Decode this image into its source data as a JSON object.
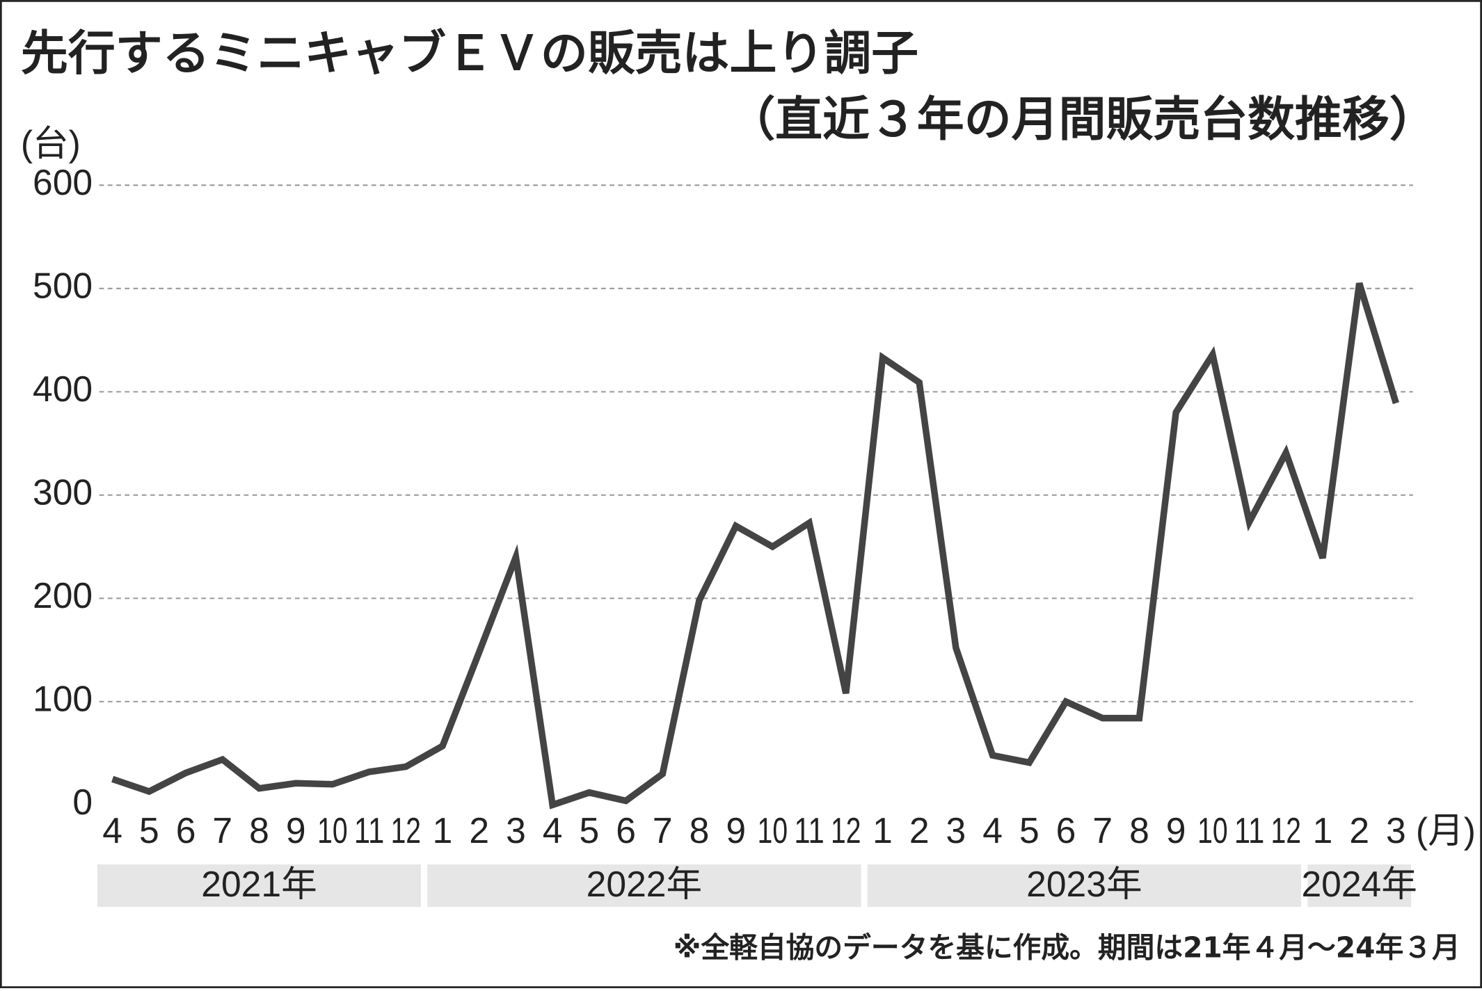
{
  "chart_data": {
    "type": "line",
    "title": "先行するミニキャブＥＶの販売は上り調子",
    "subtitle": "（直近３年の月間販売台数推移）",
    "y_unit": "(台)",
    "x_unit": "(月)",
    "categories": [
      "4",
      "5",
      "6",
      "7",
      "8",
      "9",
      "10",
      "11",
      "12",
      "1",
      "2",
      "3",
      "4",
      "5",
      "6",
      "7",
      "8",
      "9",
      "10",
      "11",
      "12",
      "1",
      "2",
      "3",
      "4",
      "5",
      "6",
      "7",
      "8",
      "9",
      "10",
      "11",
      "12",
      "1",
      "2",
      "3"
    ],
    "year_labels": [
      "2021年",
      "2022年",
      "2023年",
      "2024年"
    ],
    "values": [
      25,
      13,
      31,
      44,
      16,
      21,
      20,
      32,
      37,
      57,
      148,
      240,
      0,
      12,
      4,
      30,
      198,
      270,
      250,
      273,
      108,
      433,
      409,
      152,
      48,
      41,
      100,
      84,
      84,
      380,
      436,
      274,
      341,
      239,
      505,
      389
    ],
    "color": "#444444",
    "ylim": [
      0,
      600
    ],
    "yticks": [
      0,
      100,
      200,
      300,
      400,
      500,
      600
    ],
    "grid": true,
    "note": "※全軽自協のデータを基に作成。期間は21年４月～24年３月"
  }
}
